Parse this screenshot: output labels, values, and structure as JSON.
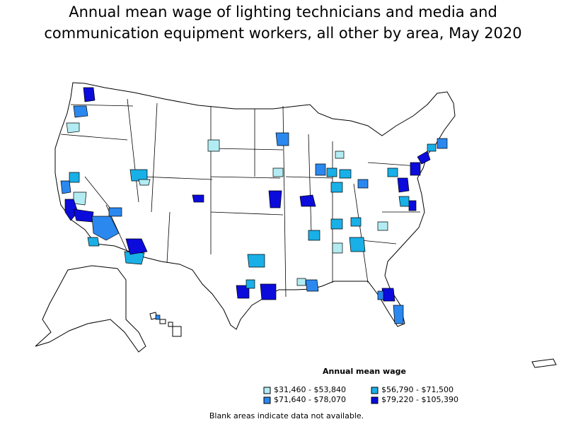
{
  "title": {
    "line1": "Annual mean wage of lighting technicians and media and",
    "line2": "communication equipment workers, all other by area, May 2020"
  },
  "legend": {
    "title": "Annual mean wage",
    "items": [
      {
        "label": "$31,460 - $53,840",
        "color": "#b2ecf2"
      },
      {
        "label": "$71,640 - $78,070",
        "color": "#2b88ef"
      },
      {
        "label": "$56,790 - $71,500",
        "color": "#19b0e8"
      },
      {
        "label": "$79,220 - $105,390",
        "color": "#0b0bdc"
      }
    ]
  },
  "footnote": "Blank areas indicate data not available.",
  "colors": {
    "no_data": "#ffffff",
    "border": "#000000"
  }
}
